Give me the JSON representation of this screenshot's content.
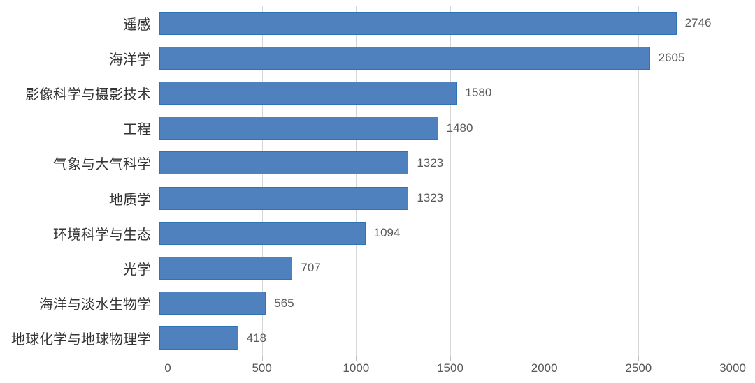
{
  "chart_data": {
    "type": "bar",
    "orientation": "horizontal",
    "title": "",
    "xlabel": "",
    "ylabel": "",
    "categories": [
      "遥感",
      "海洋学",
      "影像科学与摄影技术",
      "工程",
      "气象与大气科学",
      "地质学",
      "环境科学与生态",
      "光学",
      "海洋与淡水生物学",
      "地球化学与地球物理学"
    ],
    "values": [
      2746,
      2605,
      1580,
      1480,
      1323,
      1323,
      1094,
      707,
      565,
      418
    ],
    "value_labels": [
      "2746",
      "2605",
      "1580",
      "1480",
      "1323",
      "1323",
      "1094",
      "707",
      "565",
      "418"
    ],
    "xlim": [
      0,
      3000
    ],
    "x_ticks": [
      0,
      500,
      1000,
      1500,
      2000,
      2500,
      3000
    ],
    "x_tick_labels": [
      "0",
      "500",
      "1000",
      "1500",
      "2000",
      "2500",
      "3000"
    ],
    "grid": "vertical",
    "legend": "none",
    "data_labels": "outside-end"
  },
  "colors": {
    "bar_fill": "#4e81bd",
    "bar_border": "#2e74b5",
    "gridline": "#d6d6d6",
    "tick_label": "#595959",
    "category_label": "#333333",
    "background": "#ffffff"
  }
}
